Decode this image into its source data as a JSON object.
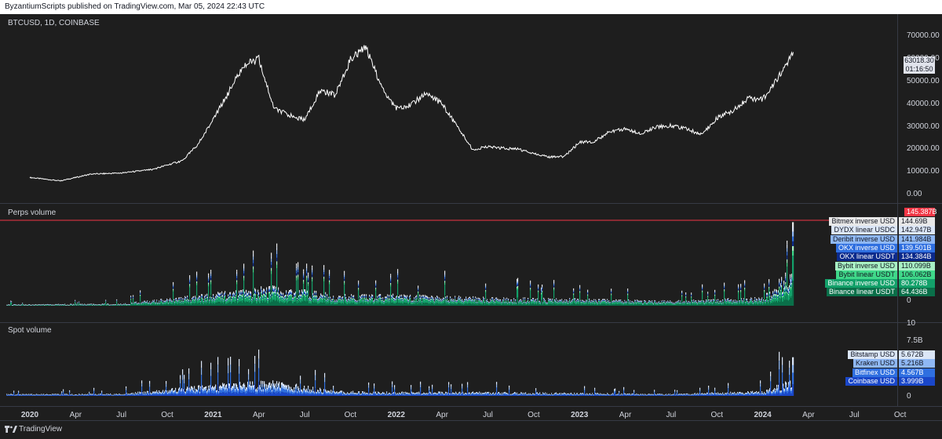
{
  "header": {
    "text": "ByzantiumScripts published on TradingView.com, Mar 05, 2024 22:43 UTC"
  },
  "footer": {
    "brand": "TradingView"
  },
  "panes": {
    "price": {
      "title": "BTCUSD, 1D, COINBASE"
    },
    "perps": {
      "title": "Perps volume"
    },
    "spot": {
      "title": "Spot volume"
    }
  },
  "price_axis": {
    "ticks": [
      "70000.00",
      "60000.00",
      "50000.00",
      "40000.00",
      "30000.00",
      "20000.00",
      "10000.00",
      "0.00"
    ],
    "last_price": "63018.30",
    "countdown": "01:16:50"
  },
  "perps_axis": {
    "ticks": [
      "0"
    ]
  },
  "spot_axis": {
    "ticks": [
      "10",
      "7.5B",
      "0"
    ]
  },
  "perps_labels": [
    {
      "name": "Bitmex inverse USD",
      "value": "144.69B",
      "bg": "#e8e8e8",
      "fg": "#131722"
    },
    {
      "name": "DYDX linear USDC",
      "value": "142.947B",
      "bg": "#dbe6f7",
      "fg": "#131722"
    },
    {
      "name": "Deribit inverse USD",
      "value": "141.984B",
      "bg": "#8fb8f4",
      "fg": "#131722"
    },
    {
      "name": "OKX inverse USD",
      "value": "139.501B",
      "bg": "#2f6fe0",
      "fg": "#ffffff"
    },
    {
      "name": "OKX linear USDT",
      "value": "134.384B",
      "bg": "#0c2a8c",
      "fg": "#ffffff"
    },
    {
      "name": "Bybit inverse USD",
      "value": "110.099B",
      "bg": "#a8f0c4",
      "fg": "#131722"
    },
    {
      "name": "Bybit linear USDT",
      "value": "106.062B",
      "bg": "#3fd889",
      "fg": "#131722"
    },
    {
      "name": "Binance inverse USD",
      "value": "80.278B",
      "bg": "#13a16a",
      "fg": "#ffffff"
    },
    {
      "name": "Binance linear USDT",
      "value": "64.436B",
      "bg": "#0a6f49",
      "fg": "#ffffff"
    }
  ],
  "perps_max": {
    "value": "145.387B",
    "bg": "#f23645"
  },
  "spot_labels": [
    {
      "name": "Bitstamp USD",
      "value": "5.672B",
      "bg": "#dbe6f7",
      "fg": "#131722"
    },
    {
      "name": "Kraken USD",
      "value": "5.216B",
      "bg": "#8fb8f4",
      "fg": "#131722"
    },
    {
      "name": "Bitfinex USD",
      "value": "4.567B",
      "bg": "#2f6fe0",
      "fg": "#ffffff"
    },
    {
      "name": "Coinbase USD",
      "value": "3.999B",
      "bg": "#1a47c9",
      "fg": "#ffffff"
    }
  ],
  "time_axis": [
    "2020",
    "Apr",
    "Jul",
    "Oct",
    "2021",
    "Apr",
    "Jul",
    "Oct",
    "2022",
    "Apr",
    "Jul",
    "Oct",
    "2023",
    "Apr",
    "Jul",
    "Oct",
    "2024",
    "Apr",
    "Jul",
    "Oct"
  ],
  "chart_data": [
    {
      "type": "line",
      "title": "BTCUSD, 1D, COINBASE",
      "x": [
        "2020-01",
        "2020-03",
        "2020-05",
        "2020-07",
        "2020-09",
        "2020-11",
        "2020-12",
        "2021-01",
        "2021-02",
        "2021-03",
        "2021-04",
        "2021-05",
        "2021-06",
        "2021-07",
        "2021-08",
        "2021-09",
        "2021-10",
        "2021-11",
        "2021-12",
        "2022-01",
        "2022-02",
        "2022-03",
        "2022-04",
        "2022-05",
        "2022-06",
        "2022-07",
        "2022-09",
        "2022-11",
        "2022-12",
        "2023-01",
        "2023-02",
        "2023-03",
        "2023-04",
        "2023-05",
        "2023-06",
        "2023-07",
        "2023-08",
        "2023-09",
        "2023-10",
        "2023-11",
        "2023-12",
        "2024-01",
        "2024-02",
        "2024-03"
      ],
      "values": [
        7500,
        6000,
        9000,
        9500,
        11000,
        15000,
        22000,
        33000,
        45000,
        57000,
        60000,
        38000,
        35000,
        33000,
        46000,
        44000,
        60000,
        65000,
        48000,
        38000,
        40000,
        45000,
        40000,
        30000,
        20000,
        21000,
        20000,
        16500,
        16800,
        23000,
        23500,
        28000,
        29000,
        27000,
        30000,
        30500,
        29000,
        26500,
        34000,
        37000,
        42500,
        42000,
        52000,
        63018.3
      ],
      "ylim": [
        0,
        75000
      ]
    },
    {
      "type": "area",
      "title": "Perps volume",
      "series": [
        {
          "name": "Bitmex inverse USD",
          "color": "#e8e8e8",
          "last": "144.69B"
        },
        {
          "name": "DYDX linear USDC",
          "color": "#dbe6f7",
          "last": "142.947B"
        },
        {
          "name": "Deribit inverse USD",
          "color": "#8fb8f4",
          "last": "141.984B"
        },
        {
          "name": "OKX inverse USD",
          "color": "#2f6fe0",
          "last": "139.501B"
        },
        {
          "name": "OKX linear USDT",
          "color": "#0c2a8c",
          "last": "134.384B"
        },
        {
          "name": "Bybit inverse USD",
          "color": "#a8f0c4",
          "last": "110.099B"
        },
        {
          "name": "Bybit linear USDT",
          "color": "#3fd889",
          "last": "106.062B"
        },
        {
          "name": "Binance inverse USD",
          "color": "#13a16a",
          "last": "80.278B"
        },
        {
          "name": "Binance linear USDT",
          "color": "#0a6f49",
          "last": "64.436B"
        }
      ],
      "x": [
        "2020-01",
        "2020-07",
        "2021-01",
        "2021-05",
        "2021-09",
        "2022-01",
        "2022-07",
        "2023-01",
        "2023-07",
        "2024-01",
        "2024-03"
      ],
      "total_billions": [
        5,
        8,
        45,
        70,
        40,
        40,
        30,
        25,
        18,
        30,
        145.387
      ],
      "ylim": [
        0,
        150
      ]
    },
    {
      "type": "area",
      "title": "Spot volume",
      "series": [
        {
          "name": "Bitstamp USD",
          "color": "#dbe6f7",
          "last": "5.672B"
        },
        {
          "name": "Kraken USD",
          "color": "#8fb8f4",
          "last": "5.216B"
        },
        {
          "name": "Bitfinex USD",
          "color": "#2f6fe0",
          "last": "4.567B"
        },
        {
          "name": "Coinbase USD",
          "color": "#1a47c9",
          "last": "3.999B"
        }
      ],
      "x": [
        "2020-01",
        "2020-07",
        "2021-01",
        "2021-05",
        "2021-09",
        "2022-01",
        "2022-07",
        "2023-01",
        "2023-07",
        "2024-01",
        "2024-03"
      ],
      "total_billions": [
        0.6,
        0.7,
        3.5,
        4.5,
        1.5,
        1.2,
        1.2,
        0.9,
        0.6,
        1.5,
        5.672
      ],
      "ylim": [
        0,
        10
      ]
    }
  ]
}
